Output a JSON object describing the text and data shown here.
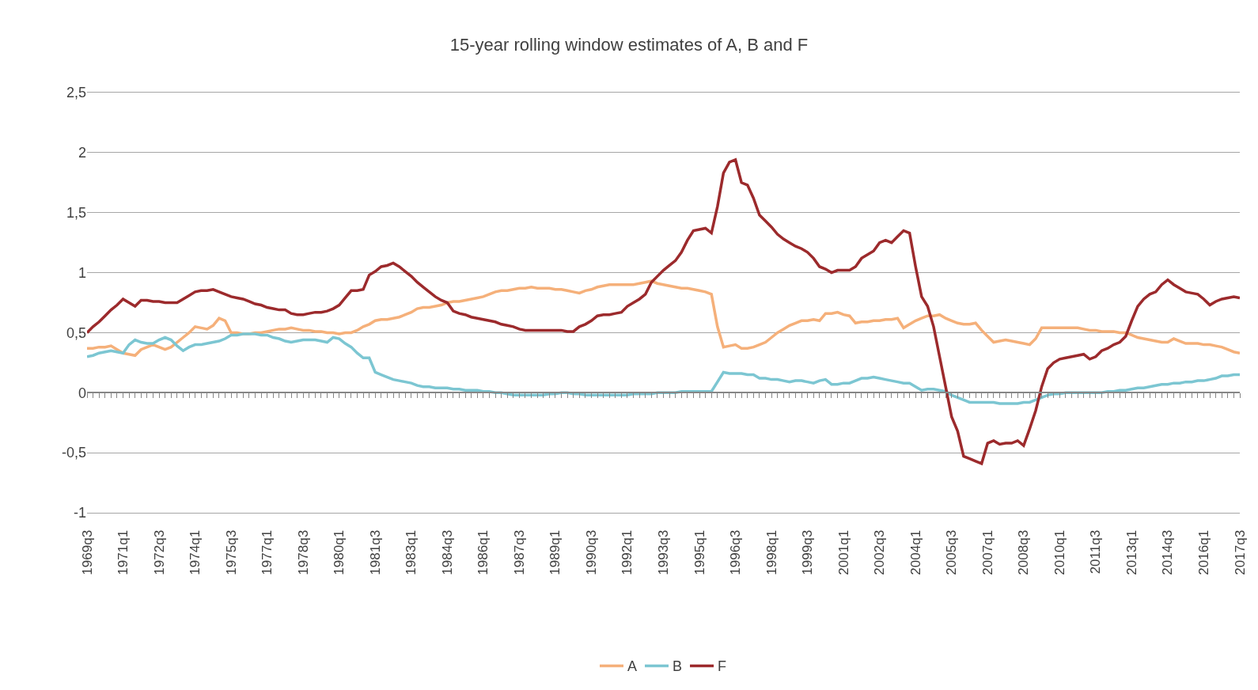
{
  "chart_data": {
    "type": "line",
    "title": "15-year rolling window estimates of A, B and F",
    "categories": [
      "1969q3",
      null,
      null,
      null,
      null,
      null,
      "1971q1",
      null,
      null,
      null,
      null,
      null,
      "1972q3",
      null,
      null,
      null,
      null,
      null,
      "1974q1",
      null,
      null,
      null,
      null,
      null,
      "1975q3",
      null,
      null,
      null,
      null,
      null,
      "1977q1",
      null,
      null,
      null,
      null,
      null,
      "1978q3",
      null,
      null,
      null,
      null,
      null,
      "1980q1",
      null,
      null,
      null,
      null,
      null,
      "1981q3",
      null,
      null,
      null,
      null,
      null,
      "1983q1",
      null,
      null,
      null,
      null,
      null,
      "1984q3",
      null,
      null,
      null,
      null,
      null,
      "1986q1",
      null,
      null,
      null,
      null,
      null,
      "1987q3",
      null,
      null,
      null,
      null,
      null,
      "1989q1",
      null,
      null,
      null,
      null,
      null,
      "1990q3",
      null,
      null,
      null,
      null,
      null,
      "1992q1",
      null,
      null,
      null,
      null,
      null,
      "1993q3",
      null,
      null,
      null,
      null,
      null,
      "1995q1",
      null,
      null,
      null,
      null,
      null,
      "1996q3",
      null,
      null,
      null,
      null,
      null,
      "1998q1",
      null,
      null,
      null,
      null,
      null,
      "1999q3",
      null,
      null,
      null,
      null,
      null,
      "2001q1",
      null,
      null,
      null,
      null,
      null,
      "2002q3",
      null,
      null,
      null,
      null,
      null,
      "2004q1",
      null,
      null,
      null,
      null,
      null,
      "2005q3",
      null,
      null,
      null,
      null,
      null,
      "2007q1",
      null,
      null,
      null,
      null,
      null,
      "2008q3",
      null,
      null,
      null,
      null,
      null,
      "2010q1",
      null,
      null,
      null,
      null,
      null,
      "2011q3",
      null,
      null,
      null,
      null,
      null,
      "2013q1",
      null,
      null,
      null,
      null,
      null,
      "2014q3",
      null,
      null,
      null,
      null,
      null,
      "2016q1",
      null,
      null,
      null,
      null,
      null,
      "2017q3"
    ],
    "ylim": [
      -1,
      2.5
    ],
    "yticks": [
      {
        "value": -1,
        "label": "-1"
      },
      {
        "value": -0.5,
        "label": "-0,5"
      },
      {
        "value": 0,
        "label": "0"
      },
      {
        "value": 0.5,
        "label": "0,5"
      },
      {
        "value": 1,
        "label": "1"
      },
      {
        "value": 1.5,
        "label": "1,5"
      },
      {
        "value": 2,
        "label": "2"
      },
      {
        "value": 2.5,
        "label": "2,5"
      }
    ],
    "grid": "y",
    "legend": "bottom",
    "marker": "none",
    "line_style": "solid",
    "series": [
      {
        "name": "A",
        "color": "#f5b07a",
        "values": [
          0.37,
          0.37,
          0.38,
          0.38,
          0.39,
          0.36,
          0.33,
          0.32,
          0.31,
          0.36,
          0.38,
          0.4,
          0.38,
          0.36,
          0.38,
          0.42,
          0.46,
          0.5,
          0.55,
          0.54,
          0.53,
          0.56,
          0.62,
          0.6,
          0.5,
          0.5,
          0.49,
          0.49,
          0.5,
          0.5,
          0.51,
          0.52,
          0.53,
          0.53,
          0.54,
          0.53,
          0.52,
          0.52,
          0.51,
          0.51,
          0.5,
          0.5,
          0.49,
          0.5,
          0.5,
          0.52,
          0.55,
          0.57,
          0.6,
          0.61,
          0.61,
          0.62,
          0.63,
          0.65,
          0.67,
          0.7,
          0.71,
          0.71,
          0.72,
          0.73,
          0.75,
          0.76,
          0.76,
          0.77,
          0.78,
          0.79,
          0.8,
          0.82,
          0.84,
          0.85,
          0.85,
          0.86,
          0.87,
          0.87,
          0.88,
          0.87,
          0.87,
          0.87,
          0.86,
          0.86,
          0.85,
          0.84,
          0.83,
          0.85,
          0.86,
          0.88,
          0.89,
          0.9,
          0.9,
          0.9,
          0.9,
          0.9,
          0.91,
          0.92,
          0.93,
          0.91,
          0.9,
          0.89,
          0.88,
          0.87,
          0.87,
          0.86,
          0.85,
          0.84,
          0.82,
          0.55,
          0.38,
          0.39,
          0.4,
          0.37,
          0.37,
          0.38,
          0.4,
          0.42,
          0.46,
          0.5,
          0.53,
          0.56,
          0.58,
          0.6,
          0.6,
          0.61,
          0.6,
          0.66,
          0.66,
          0.67,
          0.65,
          0.64,
          0.58,
          0.59,
          0.59,
          0.6,
          0.6,
          0.61,
          0.61,
          0.62,
          0.54,
          0.57,
          0.6,
          0.62,
          0.64,
          0.64,
          0.65,
          0.62,
          0.6,
          0.58,
          0.57,
          0.57,
          0.58,
          0.52,
          0.47,
          0.42,
          0.43,
          0.44,
          0.43,
          0.42,
          0.41,
          0.4,
          0.45,
          0.54,
          0.54,
          0.54,
          0.54,
          0.54,
          0.54,
          0.54,
          0.53,
          0.52,
          0.52,
          0.51,
          0.51,
          0.51,
          0.5,
          0.5,
          0.48,
          0.46,
          0.45,
          0.44,
          0.43,
          0.42,
          0.42,
          0.45,
          0.43,
          0.41,
          0.41,
          0.41,
          0.4,
          0.4,
          0.39,
          0.38,
          0.36,
          0.34,
          0.33
        ]
      },
      {
        "name": "B",
        "color": "#7cc6d2",
        "values": [
          0.3,
          0.31,
          0.33,
          0.34,
          0.35,
          0.34,
          0.33,
          0.4,
          0.44,
          0.42,
          0.41,
          0.41,
          0.44,
          0.46,
          0.44,
          0.39,
          0.35,
          0.38,
          0.4,
          0.4,
          0.41,
          0.42,
          0.43,
          0.45,
          0.48,
          0.48,
          0.49,
          0.49,
          0.49,
          0.48,
          0.48,
          0.46,
          0.45,
          0.43,
          0.42,
          0.43,
          0.44,
          0.44,
          0.44,
          0.43,
          0.42,
          0.46,
          0.45,
          0.41,
          0.38,
          0.33,
          0.29,
          0.29,
          0.17,
          0.15,
          0.13,
          0.11,
          0.1,
          0.09,
          0.08,
          0.06,
          0.05,
          0.05,
          0.04,
          0.04,
          0.04,
          0.03,
          0.03,
          0.02,
          0.02,
          0.02,
          0.01,
          0.01,
          0.0,
          0.0,
          -0.01,
          -0.02,
          -0.02,
          -0.02,
          -0.02,
          -0.02,
          -0.02,
          -0.01,
          -0.01,
          0.0,
          0.0,
          -0.01,
          -0.01,
          -0.02,
          -0.02,
          -0.02,
          -0.02,
          -0.02,
          -0.02,
          -0.02,
          -0.02,
          -0.01,
          -0.01,
          -0.01,
          -0.01,
          0.0,
          0.0,
          0.0,
          0.0,
          0.01,
          0.01,
          0.01,
          0.01,
          0.01,
          0.01,
          0.09,
          0.17,
          0.16,
          0.16,
          0.16,
          0.15,
          0.15,
          0.12,
          0.12,
          0.11,
          0.11,
          0.1,
          0.09,
          0.1,
          0.1,
          0.09,
          0.08,
          0.1,
          0.11,
          0.07,
          0.07,
          0.08,
          0.08,
          0.1,
          0.12,
          0.12,
          0.13,
          0.12,
          0.11,
          0.1,
          0.09,
          0.08,
          0.08,
          0.05,
          0.02,
          0.03,
          0.03,
          0.02,
          0.01,
          -0.02,
          -0.04,
          -0.06,
          -0.08,
          -0.08,
          -0.08,
          -0.08,
          -0.08,
          -0.09,
          -0.09,
          -0.09,
          -0.09,
          -0.08,
          -0.08,
          -0.06,
          -0.04,
          -0.02,
          -0.01,
          -0.01,
          0.0,
          0.0,
          0.0,
          0.0,
          0.0,
          0.0,
          0.0,
          0.01,
          0.01,
          0.02,
          0.02,
          0.03,
          0.04,
          0.04,
          0.05,
          0.06,
          0.07,
          0.07,
          0.08,
          0.08,
          0.09,
          0.09,
          0.1,
          0.1,
          0.11,
          0.12,
          0.14,
          0.14,
          0.15,
          0.15
        ]
      },
      {
        "name": "F",
        "color": "#9c2a2c",
        "values": [
          0.5,
          0.55,
          0.59,
          0.64,
          0.69,
          0.73,
          0.78,
          0.75,
          0.72,
          0.77,
          0.77,
          0.76,
          0.76,
          0.75,
          0.75,
          0.75,
          0.78,
          0.81,
          0.84,
          0.85,
          0.85,
          0.86,
          0.84,
          0.82,
          0.8,
          0.79,
          0.78,
          0.76,
          0.74,
          0.73,
          0.71,
          0.7,
          0.69,
          0.69,
          0.66,
          0.65,
          0.65,
          0.66,
          0.67,
          0.67,
          0.68,
          0.7,
          0.73,
          0.79,
          0.85,
          0.85,
          0.86,
          0.98,
          1.01,
          1.05,
          1.06,
          1.08,
          1.05,
          1.01,
          0.97,
          0.92,
          0.88,
          0.84,
          0.8,
          0.77,
          0.75,
          0.68,
          0.66,
          0.65,
          0.63,
          0.62,
          0.61,
          0.6,
          0.59,
          0.57,
          0.56,
          0.55,
          0.53,
          0.52,
          0.52,
          0.52,
          0.52,
          0.52,
          0.52,
          0.52,
          0.51,
          0.51,
          0.55,
          0.57,
          0.6,
          0.64,
          0.65,
          0.65,
          0.66,
          0.67,
          0.72,
          0.75,
          0.78,
          0.82,
          0.92,
          0.97,
          1.02,
          1.06,
          1.1,
          1.17,
          1.27,
          1.35,
          1.36,
          1.37,
          1.33,
          1.55,
          1.83,
          1.92,
          1.94,
          1.75,
          1.73,
          1.62,
          1.48,
          1.43,
          1.38,
          1.32,
          1.28,
          1.25,
          1.22,
          1.2,
          1.17,
          1.12,
          1.05,
          1.03,
          1.0,
          1.02,
          1.02,
          1.02,
          1.05,
          1.12,
          1.15,
          1.18,
          1.25,
          1.27,
          1.25,
          1.3,
          1.35,
          1.33,
          1.05,
          0.8,
          0.72,
          0.55,
          0.3,
          0.05,
          -0.2,
          -0.32,
          -0.53,
          -0.55,
          -0.57,
          -0.59,
          -0.42,
          -0.4,
          -0.43,
          -0.42,
          -0.42,
          -0.4,
          -0.44,
          -0.3,
          -0.15,
          0.05,
          0.2,
          0.25,
          0.28,
          0.29,
          0.3,
          0.31,
          0.32,
          0.28,
          0.3,
          0.35,
          0.37,
          0.4,
          0.42,
          0.47,
          0.6,
          0.72,
          0.78,
          0.82,
          0.84,
          0.9,
          0.94,
          0.9,
          0.87,
          0.84,
          0.83,
          0.82,
          0.78,
          0.73,
          0.76,
          0.78,
          0.79,
          0.8,
          0.79
        ]
      }
    ]
  }
}
